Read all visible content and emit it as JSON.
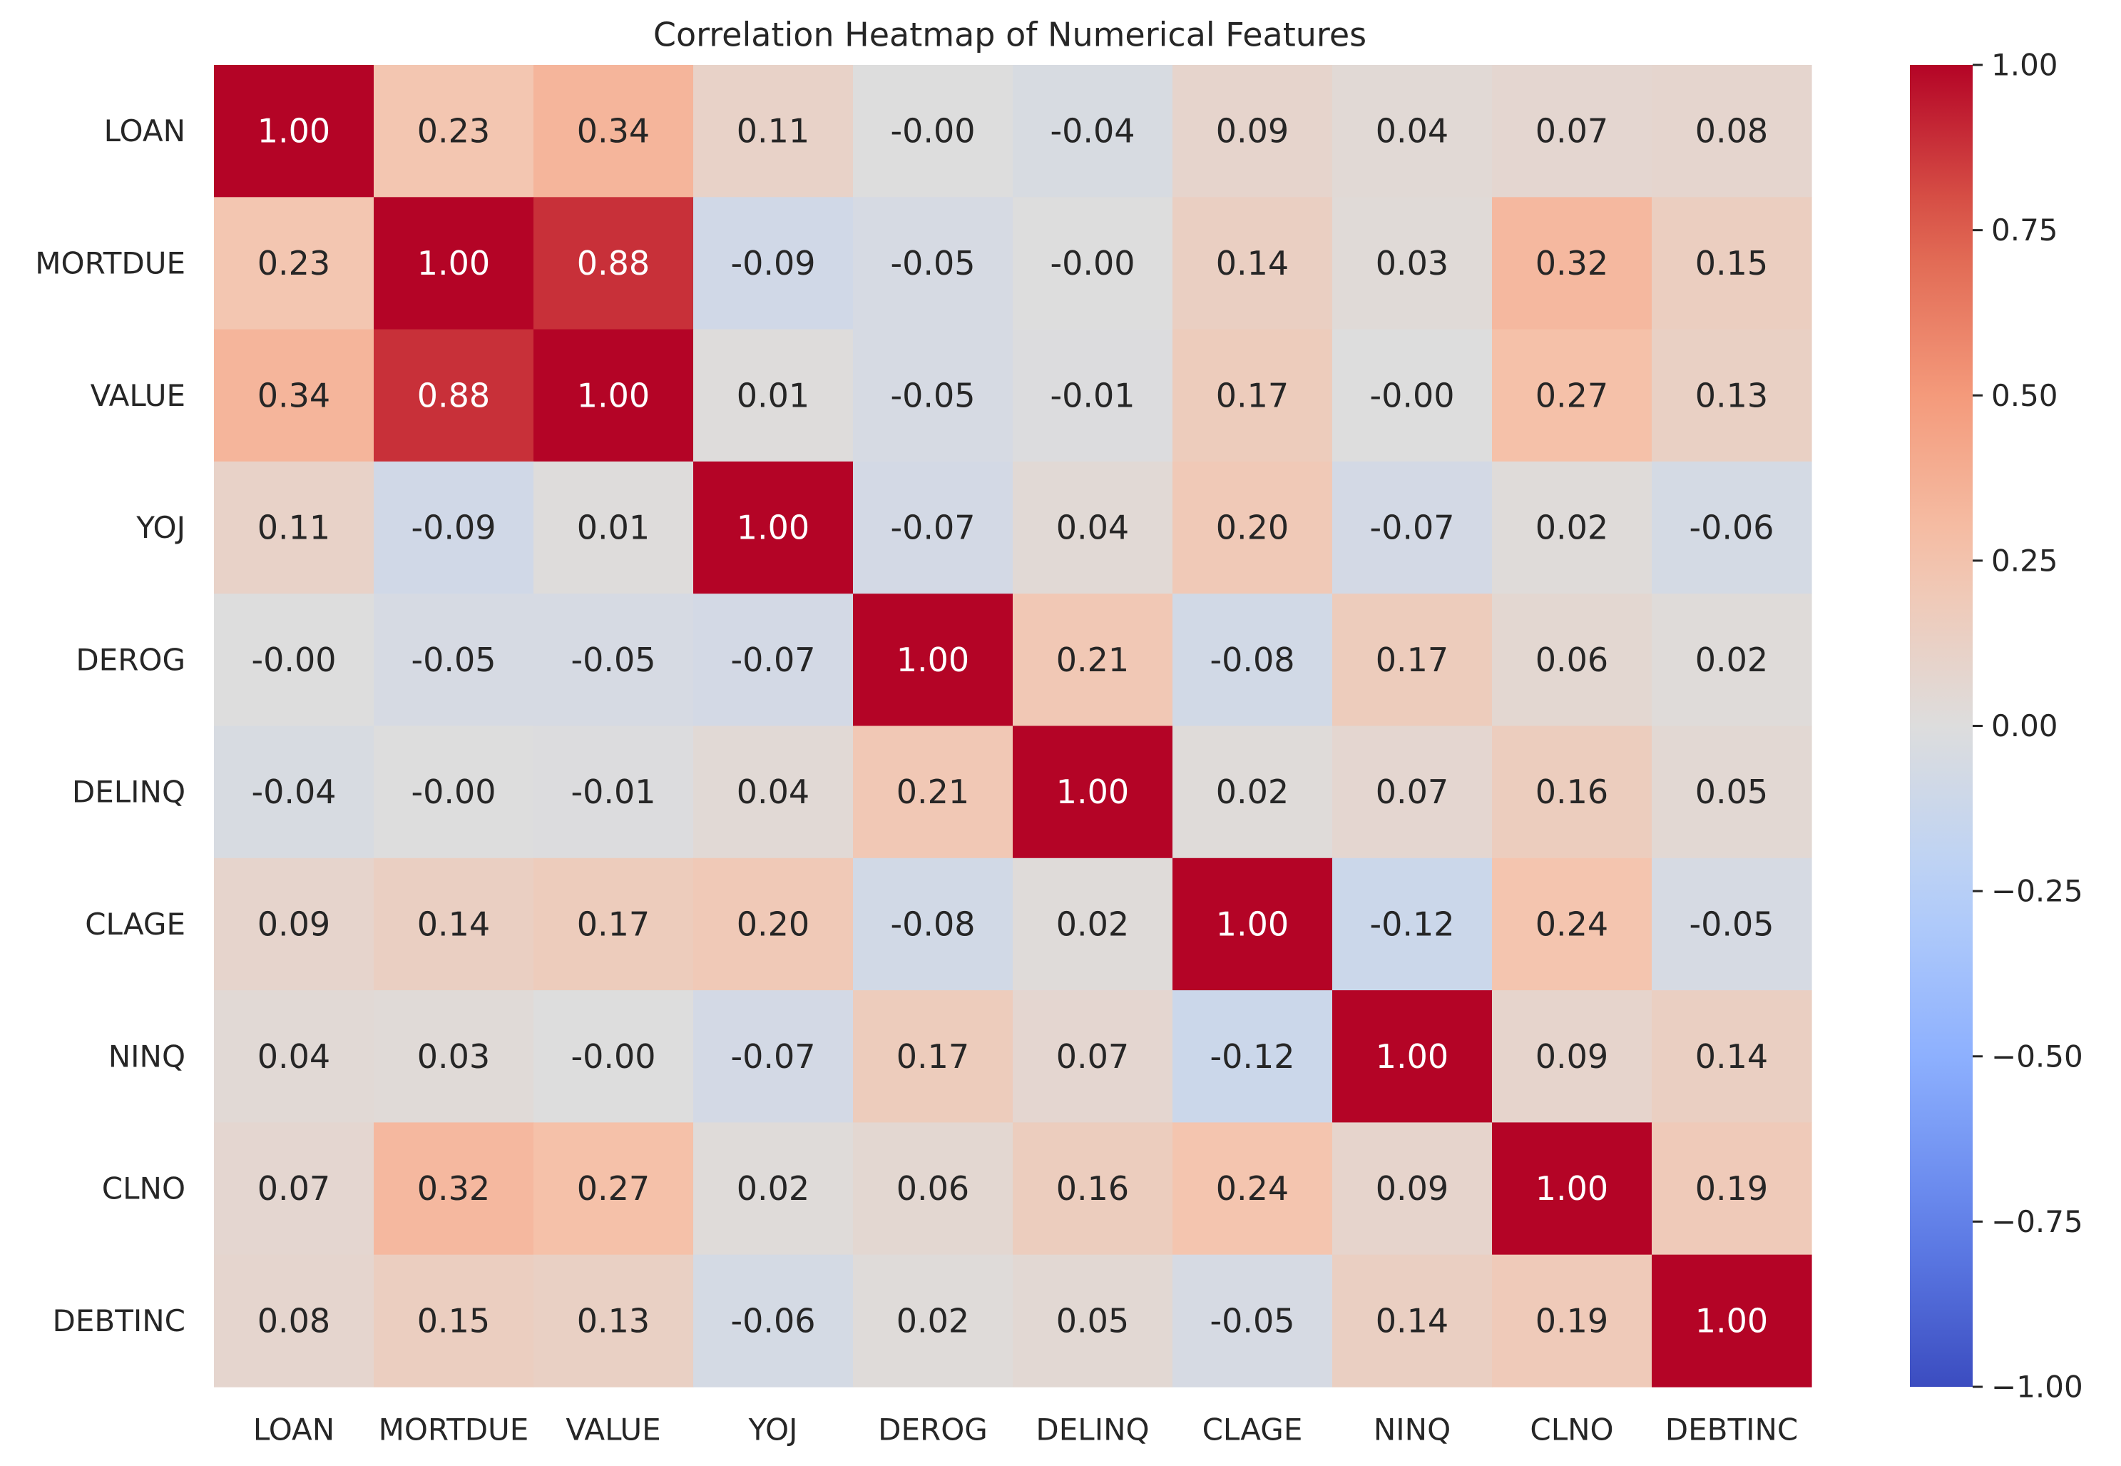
{
  "chart_data": {
    "type": "heatmap",
    "title": "Correlation Heatmap of Numerical Features",
    "xlabel": "",
    "ylabel": "",
    "x_categories": [
      "LOAN",
      "MORTDUE",
      "VALUE",
      "YOJ",
      "DEROG",
      "DELINQ",
      "CLAGE",
      "NINQ",
      "CLNO",
      "DEBTINC"
    ],
    "y_categories": [
      "LOAN",
      "MORTDUE",
      "VALUE",
      "YOJ",
      "DEROG",
      "DELINQ",
      "CLAGE",
      "NINQ",
      "CLNO",
      "DEBTINC"
    ],
    "values": [
      [
        1.0,
        0.23,
        0.34,
        0.11,
        -0.0,
        -0.04,
        0.09,
        0.04,
        0.07,
        0.08
      ],
      [
        0.23,
        1.0,
        0.88,
        -0.09,
        -0.05,
        -0.0,
        0.14,
        0.03,
        0.32,
        0.15
      ],
      [
        0.34,
        0.88,
        1.0,
        0.01,
        -0.05,
        -0.01,
        0.17,
        -0.0,
        0.27,
        0.13
      ],
      [
        0.11,
        -0.09,
        0.01,
        1.0,
        -0.07,
        0.04,
        0.2,
        -0.07,
        0.02,
        -0.06
      ],
      [
        -0.0,
        -0.05,
        -0.05,
        -0.07,
        1.0,
        0.21,
        -0.08,
        0.17,
        0.06,
        0.02
      ],
      [
        -0.04,
        -0.0,
        -0.01,
        0.04,
        0.21,
        1.0,
        0.02,
        0.07,
        0.16,
        0.05
      ],
      [
        0.09,
        0.14,
        0.17,
        0.2,
        -0.08,
        0.02,
        1.0,
        -0.12,
        0.24,
        -0.05
      ],
      [
        0.04,
        0.03,
        -0.0,
        -0.07,
        0.17,
        0.07,
        -0.12,
        1.0,
        0.09,
        0.14
      ],
      [
        0.07,
        0.32,
        0.27,
        0.02,
        0.06,
        0.16,
        0.24,
        0.09,
        1.0,
        0.19
      ],
      [
        0.08,
        0.15,
        0.13,
        -0.06,
        0.02,
        0.05,
        -0.05,
        0.14,
        0.19,
        1.0
      ]
    ],
    "value_format": "0.00",
    "colormap": "coolwarm",
    "vmin": -1.0,
    "vmax": 1.0,
    "colorbar": {
      "ticks": [
        1.0,
        0.75,
        0.5,
        0.25,
        0.0,
        -0.25,
        -0.5,
        -0.75,
        -1.0
      ],
      "tick_labels": [
        "1.00",
        "0.75",
        "0.50",
        "0.25",
        "0.00",
        "−0.25",
        "−0.50",
        "−0.75",
        "−1.00"
      ],
      "placement": "right"
    },
    "grid": false,
    "annot_colors": {
      "dark": "#262626",
      "light": "#ffffff"
    }
  }
}
